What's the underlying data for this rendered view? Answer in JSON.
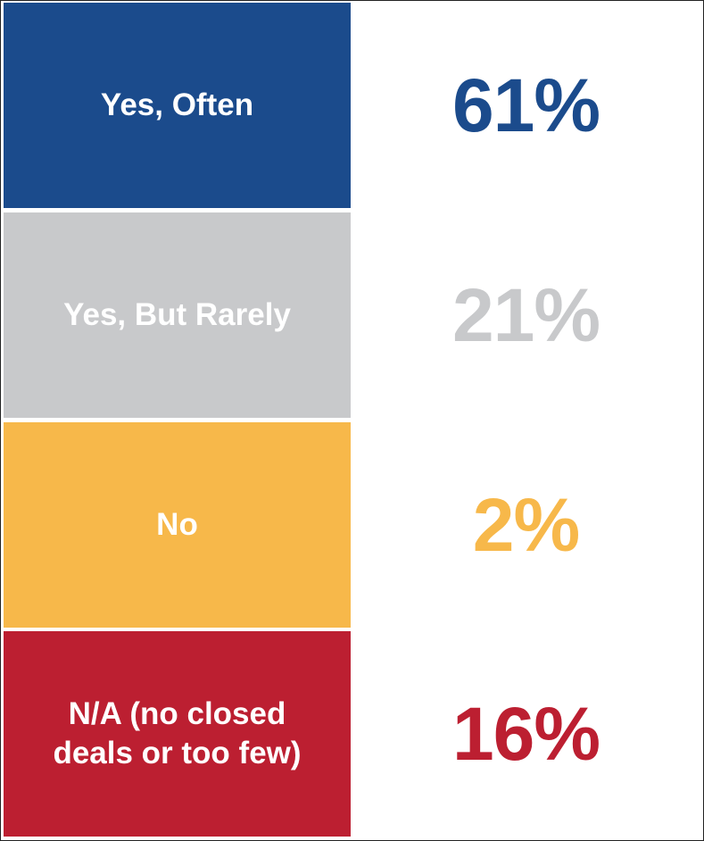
{
  "chart_data": {
    "type": "table",
    "categories": [
      "Yes, Often",
      "Yes, But Rarely",
      "No",
      "N/A (no closed\ndeals or too few)"
    ],
    "values": [
      61,
      21,
      2,
      16
    ],
    "value_labels": [
      "61%",
      "21%",
      "2%",
      "16%"
    ],
    "colors": [
      "#1b4b8c",
      "#c8c9cb",
      "#f7b84a",
      "#bc1f31"
    ]
  }
}
